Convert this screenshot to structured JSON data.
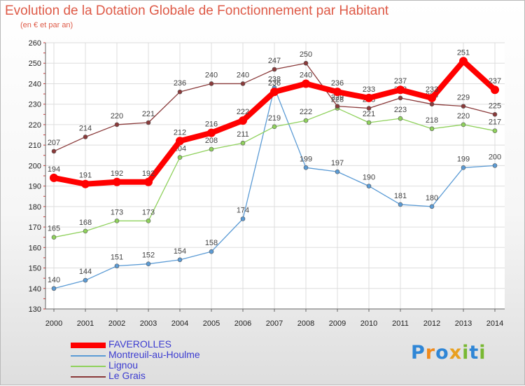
{
  "title": "Evolution de la Dotation Globale de Fonctionnement par Habitant",
  "subtitle": "(en € et par an)",
  "brand": {
    "letters": [
      {
        "ch": "P",
        "color": "#2f86d6"
      },
      {
        "ch": "r",
        "color": "#f08a1c"
      },
      {
        "ch": "o",
        "color": "#2f86d6"
      },
      {
        "ch": "x",
        "color": "#e8a020"
      },
      {
        "ch": "i",
        "color": "#78b832"
      },
      {
        "ch": "t",
        "color": "#2f86d6"
      },
      {
        "ch": "i",
        "color": "#78b832"
      }
    ]
  },
  "chart_data": {
    "type": "line",
    "title": "Evolution de la Dotation Globale de Fonctionnement par Habitant",
    "subtitle": "(en € et par an)",
    "xlabel": "",
    "ylabel": "",
    "ylim": [
      130,
      260
    ],
    "yticks": [
      130,
      140,
      150,
      160,
      170,
      180,
      190,
      200,
      210,
      220,
      230,
      240,
      250,
      260
    ],
    "grid": true,
    "legend_position": "bottom-left",
    "categories": [
      "2000",
      "2001",
      "2002",
      "2003",
      "2004",
      "2005",
      "2006",
      "2007",
      "2008",
      "2009",
      "2010",
      "2011",
      "2012",
      "2013",
      "2014"
    ],
    "series": [
      {
        "name": "FAVEROLLES",
        "color": "#ff0000",
        "emphasis": true,
        "values": [
          194,
          191,
          192,
          192,
          212,
          216,
          222,
          236,
          240,
          236,
          233,
          237,
          233,
          251,
          237
        ]
      },
      {
        "name": "Montreuil-au-Houlme",
        "color": "#5b9bd5",
        "emphasis": false,
        "values": [
          140,
          144,
          151,
          152,
          154,
          158,
          174,
          238,
          199,
          197,
          190,
          181,
          180,
          199,
          200
        ]
      },
      {
        "name": "Lignou",
        "color": "#8fd15c",
        "emphasis": false,
        "values": [
          165,
          168,
          173,
          173,
          204,
          208,
          211,
          219,
          222,
          228,
          221,
          223,
          218,
          220,
          217
        ]
      },
      {
        "name": "Le Grais",
        "color": "#8a3a3a",
        "emphasis": false,
        "values": [
          207,
          214,
          220,
          221,
          236,
          240,
          240,
          247,
          250,
          229,
          228,
          233,
          230,
          229,
          225
        ]
      }
    ]
  }
}
